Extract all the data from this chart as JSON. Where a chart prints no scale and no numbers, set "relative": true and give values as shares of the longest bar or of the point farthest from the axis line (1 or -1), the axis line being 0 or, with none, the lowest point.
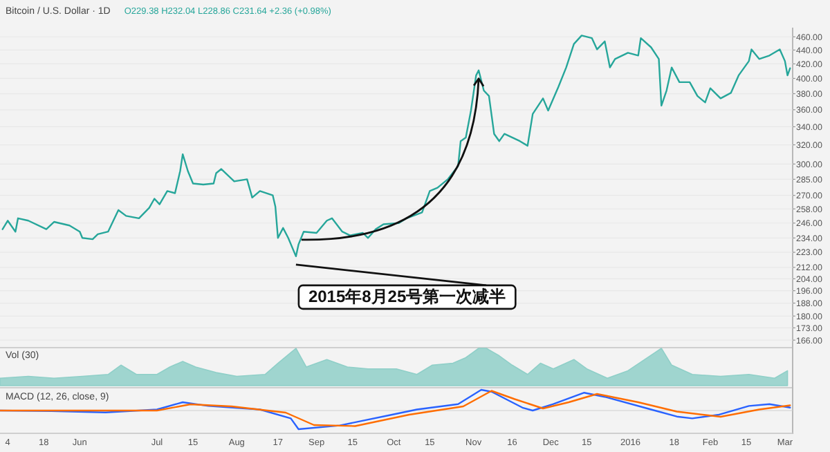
{
  "chart_data": [
    {
      "type": "line",
      "title": "Bitcoin / U.S. Dollar · 1D",
      "subtitle": "O229.38 H232.04 L228.86 C231.64 +2.36 (+0.98%)",
      "color": "#26a69a",
      "log": true,
      "grid": true,
      "tick_labels": "y",
      "xlim": [
        "2015-05-01",
        "2016-03-04"
      ],
      "ylim": [
        163,
        470
      ],
      "yticks": [
        {
          "value": 460,
          "label": "460.00"
        },
        {
          "value": 440,
          "label": "440.00"
        },
        {
          "value": 420,
          "label": "420.00"
        },
        {
          "value": 400,
          "label": "400.00"
        },
        {
          "value": 380,
          "label": "380.00"
        },
        {
          "value": 360,
          "label": "360.00"
        },
        {
          "value": 340,
          "label": "340.00"
        },
        {
          "value": 320,
          "label": "320.00"
        },
        {
          "value": 300,
          "label": "300.00"
        },
        {
          "value": 285,
          "label": "285.00"
        },
        {
          "value": 270,
          "label": "270.00"
        },
        {
          "value": 258,
          "label": "258.00"
        },
        {
          "value": 246,
          "label": "246.00"
        },
        {
          "value": 234,
          "label": "234.00"
        },
        {
          "value": 223,
          "label": "223.00"
        },
        {
          "value": 212,
          "label": "212.00"
        },
        {
          "value": 204,
          "label": "204.00"
        },
        {
          "value": 196,
          "label": "196.00"
        },
        {
          "value": 188,
          "label": "188.00"
        },
        {
          "value": 180,
          "label": "180.00"
        },
        {
          "value": 173,
          "label": "173.00"
        },
        {
          "value": 166,
          "label": "166.00"
        }
      ],
      "x": [
        "2015-05-02",
        "2015-05-04",
        "2015-05-07",
        "2015-05-08",
        "2015-05-12",
        "2015-05-19",
        "2015-05-22",
        "2015-05-28",
        "2015-06-01",
        "2015-06-02",
        "2015-06-06",
        "2015-06-08",
        "2015-06-12",
        "2015-06-16",
        "2015-06-19",
        "2015-06-24",
        "2015-06-28",
        "2015-06-30",
        "2015-07-02",
        "2015-07-05",
        "2015-07-08",
        "2015-07-10",
        "2015-07-11",
        "2015-07-13",
        "2015-07-15",
        "2015-07-19",
        "2015-07-23",
        "2015-07-24",
        "2015-07-26",
        "2015-07-31",
        "2015-08-05",
        "2015-08-07",
        "2015-08-10",
        "2015-08-15",
        "2015-08-16",
        "2015-08-17",
        "2015-08-19",
        "2015-08-21",
        "2015-08-24",
        "2015-08-25",
        "2015-08-27",
        "2015-09-01",
        "2015-09-05",
        "2015-09-07",
        "2015-09-11",
        "2015-09-14",
        "2015-09-19",
        "2015-09-21",
        "2015-09-24",
        "2015-09-27",
        "2015-10-03",
        "2015-10-06",
        "2015-10-12",
        "2015-10-15",
        "2015-10-18",
        "2015-10-22",
        "2015-10-26",
        "2015-10-27",
        "2015-10-29",
        "2015-10-31",
        "2015-11-02",
        "2015-11-03",
        "2015-11-05",
        "2015-11-07",
        "2015-11-09",
        "2015-11-11",
        "2015-11-13",
        "2015-11-16",
        "2015-11-19",
        "2015-11-22",
        "2015-11-24",
        "2015-11-28",
        "2015-11-30",
        "2015-12-04",
        "2015-12-07",
        "2015-12-10",
        "2015-12-13",
        "2015-12-17",
        "2015-12-19",
        "2015-12-22",
        "2015-12-24",
        "2015-12-26",
        "2015-12-31",
        "2016-01-04",
        "2016-01-05",
        "2016-01-09",
        "2016-01-12",
        "2016-01-13",
        "2016-01-15",
        "2016-01-17",
        "2016-01-20",
        "2016-01-24",
        "2016-01-27",
        "2016-01-30",
        "2016-02-01",
        "2016-02-05",
        "2016-02-09",
        "2016-02-12",
        "2016-02-16",
        "2016-02-17",
        "2016-02-20",
        "2016-02-24",
        "2016-02-28",
        "2016-03-01",
        "2016-03-02",
        "2016-03-03"
      ],
      "values": [
        241,
        248,
        239,
        250,
        248,
        241,
        247,
        244,
        239,
        234,
        233,
        237,
        239,
        257,
        252,
        250,
        259,
        267,
        262,
        274,
        272,
        293,
        310,
        293,
        281,
        280,
        281,
        291,
        295,
        283,
        285,
        268,
        274,
        270,
        260,
        234,
        242,
        234,
        220,
        229,
        239,
        238,
        248,
        250,
        239,
        236,
        238,
        234,
        241,
        245,
        246,
        250,
        255,
        274,
        277,
        285,
        298,
        324,
        328,
        359,
        404,
        411,
        384,
        377,
        332,
        324,
        332,
        328,
        324,
        319,
        355,
        374,
        359,
        389,
        415,
        449,
        462,
        458,
        441,
        453,
        415,
        427,
        436,
        432,
        458,
        444,
        427,
        365,
        384,
        415,
        395,
        395,
        377,
        369,
        387,
        374,
        381,
        404,
        424,
        441,
        427,
        432,
        441,
        424,
        404,
        414
      ],
      "annotations": [
        {
          "text": "2015年8月25号第一次减半",
          "x": "2015-08-24",
          "y": 220
        }
      ]
    },
    {
      "type": "area",
      "relative": true,
      "title": "Vol (30)",
      "color": "#8fcfc8",
      "tick_labels": false,
      "xlim": [
        "2015-05-01",
        "2016-03-04"
      ],
      "x": [
        "2015-05-01",
        "2015-05-12",
        "2015-05-22",
        "2015-06-02",
        "2015-06-12",
        "2015-06-17",
        "2015-06-23",
        "2015-07-01",
        "2015-07-06",
        "2015-07-11",
        "2015-07-16",
        "2015-07-24",
        "2015-08-01",
        "2015-08-12",
        "2015-08-17",
        "2015-08-24",
        "2015-08-28",
        "2015-09-05",
        "2015-09-13",
        "2015-09-21",
        "2015-10-02",
        "2015-10-10",
        "2015-10-16",
        "2015-10-24",
        "2015-10-29",
        "2015-11-03",
        "2015-11-06",
        "2015-11-11",
        "2015-11-16",
        "2015-11-22",
        "2015-11-27",
        "2015-12-02",
        "2015-12-10",
        "2015-12-15",
        "2015-12-23",
        "2015-12-31",
        "2016-01-13",
        "2016-01-17",
        "2016-01-25",
        "2016-02-05",
        "2016-02-16",
        "2016-02-26",
        "2016-03-02"
      ],
      "values": [
        0.2,
        0.25,
        0.2,
        0.25,
        0.3,
        0.55,
        0.3,
        0.3,
        0.5,
        0.65,
        0.5,
        0.35,
        0.25,
        0.3,
        0.6,
        1,
        0.5,
        0.7,
        0.5,
        0.45,
        0.45,
        0.3,
        0.55,
        0.6,
        0.75,
        1,
        1,
        0.8,
        0.55,
        0.3,
        0.6,
        0.45,
        0.7,
        0.45,
        0.2,
        0.4,
        1,
        0.55,
        0.3,
        0.25,
        0.3,
        0.2,
        0.4
      ]
    },
    {
      "type": "line",
      "relative": true,
      "title": "MACD (12, 26, close, 9)",
      "tick_labels": "x",
      "xlim": [
        "2015-05-01",
        "2016-03-04"
      ],
      "xticks": [
        {
          "value": "2015-05-04",
          "label": "4"
        },
        {
          "value": "2015-05-18",
          "label": "18"
        },
        {
          "value": "2015-06-01",
          "label": "Jun"
        },
        {
          "value": "2015-07-01",
          "label": "Jul"
        },
        {
          "value": "2015-07-15",
          "label": "15"
        },
        {
          "value": "2015-08-01",
          "label": "Aug"
        },
        {
          "value": "2015-08-17",
          "label": "17"
        },
        {
          "value": "2015-09-01",
          "label": "Sep"
        },
        {
          "value": "2015-09-15",
          "label": "15"
        },
        {
          "value": "2015-10-01",
          "label": "Oct"
        },
        {
          "value": "2015-10-15",
          "label": "15"
        },
        {
          "value": "2015-11-01",
          "label": "Nov"
        },
        {
          "value": "2015-11-16",
          "label": "16"
        },
        {
          "value": "2015-12-01",
          "label": "Dec"
        },
        {
          "value": "2015-12-15",
          "label": "15"
        },
        {
          "value": "2016-01-01",
          "label": "2016"
        },
        {
          "value": "2016-01-18",
          "label": "18"
        },
        {
          "value": "2016-02-01",
          "label": "Feb"
        },
        {
          "value": "2016-02-15",
          "label": "15"
        },
        {
          "value": "2016-03-01",
          "label": "Mar"
        }
      ],
      "series": [
        {
          "color": "#2962ff",
          "x": [
            "2015-05-01",
            "2015-05-21",
            "2015-06-11",
            "2015-07-01",
            "2015-07-11",
            "2015-07-21",
            "2015-08-10",
            "2015-08-22",
            "2015-08-25",
            "2015-09-10",
            "2015-09-30",
            "2015-10-10",
            "2015-10-26",
            "2015-11-04",
            "2015-11-08",
            "2015-11-20",
            "2015-11-24",
            "2015-12-02",
            "2015-12-14",
            "2015-12-22",
            "2016-01-09",
            "2016-01-19",
            "2016-01-25",
            "2016-02-04",
            "2016-02-16",
            "2016-02-24",
            "2016-03-03"
          ],
          "values": [
            0,
            -0.03,
            -0.09,
            0.05,
            0.4,
            0.22,
            0.05,
            -0.38,
            -0.9,
            -0.72,
            -0.21,
            0.05,
            0.31,
            1,
            0.91,
            0.14,
            0,
            0.31,
            0.86,
            0.66,
            0.05,
            -0.29,
            -0.38,
            -0.21,
            0.22,
            0.31,
            0.14
          ]
        },
        {
          "color": "#ff6d00",
          "x": [
            "2015-05-01",
            "2015-07-01",
            "2015-07-14",
            "2015-07-30",
            "2015-08-20",
            "2015-08-31",
            "2015-09-16",
            "2015-10-07",
            "2015-10-28",
            "2015-11-08",
            "2015-11-17",
            "2015-11-28",
            "2015-12-08",
            "2015-12-19",
            "2016-01-04",
            "2016-01-19",
            "2016-02-05",
            "2016-02-20",
            "2016-03-03"
          ],
          "values": [
            0,
            0,
            0.3,
            0.2,
            -0.1,
            -0.7,
            -0.75,
            -0.2,
            0.2,
            0.95,
            0.55,
            0.1,
            0.4,
            0.8,
            0.4,
            -0.05,
            -0.3,
            0.05,
            0.25
          ]
        }
      ]
    }
  ]
}
